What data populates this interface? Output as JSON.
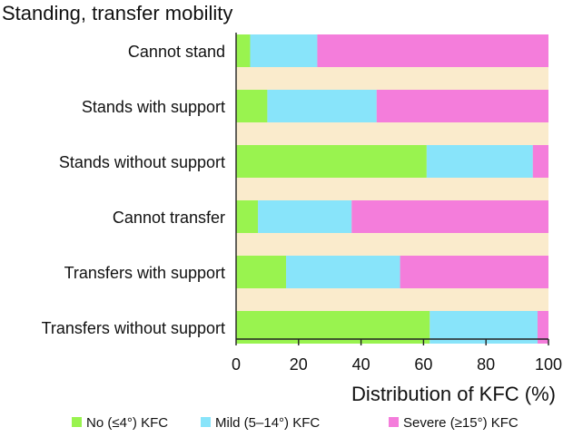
{
  "chart_data": {
    "type": "bar",
    "orientation": "horizontal",
    "stacked": true,
    "title": "Standing, transfer mobility",
    "xlabel": "Distribution of KFC (%)",
    "ylabel": "",
    "xlim": [
      0,
      100
    ],
    "xticks": [
      0,
      20,
      40,
      60,
      80,
      100
    ],
    "xtick_labels": [
      "0",
      "20",
      "40",
      "60",
      "80",
      "100"
    ],
    "categories": [
      "Cannot stand",
      "Stands with support",
      "Stands without support",
      "Cannot transfer",
      "Transfers with support",
      "Transfers without support"
    ],
    "series": [
      {
        "name": "No (≤4°) KFC",
        "color": "#99f34f",
        "values": [
          4.5,
          10,
          61,
          7,
          16,
          62
        ]
      },
      {
        "name": "Mild (5–14°) KFC",
        "color": "#88e4fa",
        "values": [
          21.5,
          35,
          34,
          30,
          36.5,
          34.5
        ]
      },
      {
        "name": "Severe (≥15°) KFC",
        "color": "#f47ddb",
        "values": [
          74,
          55,
          5,
          63,
          47.5,
          3.5
        ]
      }
    ],
    "background_band_color": "#faebcc",
    "grid": false,
    "legend_position": "bottom"
  }
}
